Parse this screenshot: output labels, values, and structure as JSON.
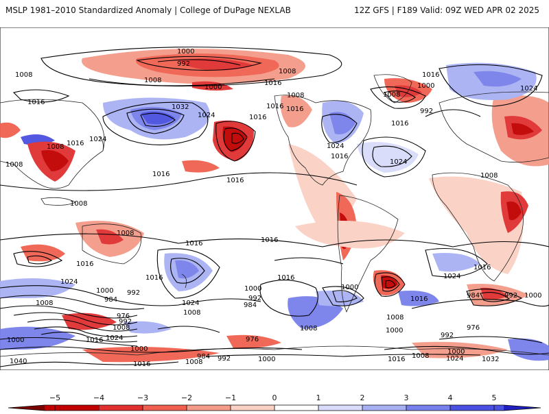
{
  "header": {
    "title": "MSLP 1981–2010 Standardized Anomaly | College of DuPage NEXLAB",
    "run_info": "12Z GFS | F189 Valid: 09Z WED APR 02 2025"
  },
  "colorbar": {
    "ticks": [
      "−5",
      "−4",
      "−3",
      "−2",
      "−1",
      "0",
      "1",
      "2",
      "3",
      "4",
      "5"
    ],
    "colors": [
      "#7a0000",
      "#c00000",
      "#e03030",
      "#f06050",
      "#f49a88",
      "#fad0c4",
      "#ffffff",
      "#d8dcfa",
      "#a8b0f4",
      "#7880ec",
      "#4a50e0",
      "#2020c0"
    ]
  },
  "isobars": {
    "labels": [
      {
        "text": "1000",
        "lon": -90,
        "lat": 73
      },
      {
        "text": "992",
        "lon": -95,
        "lat": 68
      },
      {
        "text": "1008",
        "lon": -165,
        "lat": 64
      },
      {
        "text": "1008",
        "lon": -117,
        "lat": 62
      },
      {
        "text": "1000",
        "lon": -95,
        "lat": 55
      },
      {
        "text": "1008",
        "lon": -35,
        "lat": 66
      },
      {
        "text": "1016",
        "lon": -50,
        "lat": 60
      },
      {
        "text": "1016",
        "lon": -165,
        "lat": 48
      },
      {
        "text": "1032",
        "lon": -113,
        "lat": 46
      },
      {
        "text": "1024",
        "lon": -77,
        "lat": 38
      },
      {
        "text": "1016",
        "lon": -55,
        "lat": 36
      },
      {
        "text": "1016",
        "lon": -178,
        "lat": 24
      },
      {
        "text": "1024",
        "lon": -150,
        "lat": 27
      },
      {
        "text": "1008",
        "lon": -135,
        "lat": 17
      },
      {
        "text": "1016",
        "lon": -117,
        "lat": -7
      },
      {
        "text": "1016",
        "lon": -28,
        "lat": -4
      },
      {
        "text": "1008",
        "lon": -163,
        "lat": -40
      },
      {
        "text": "1016",
        "lon": -110,
        "lat": -39
      },
      {
        "text": "1016",
        "lon": -70,
        "lat": -40
      },
      {
        "text": "1008",
        "lon": -125,
        "lat": -54
      },
      {
        "text": "1024",
        "lon": -155,
        "lat": -58
      },
      {
        "text": "1016",
        "lon": -160,
        "lat": -66
      },
      {
        "text": "1000",
        "lon": -153,
        "lat": -67
      }
    ]
  }
}
